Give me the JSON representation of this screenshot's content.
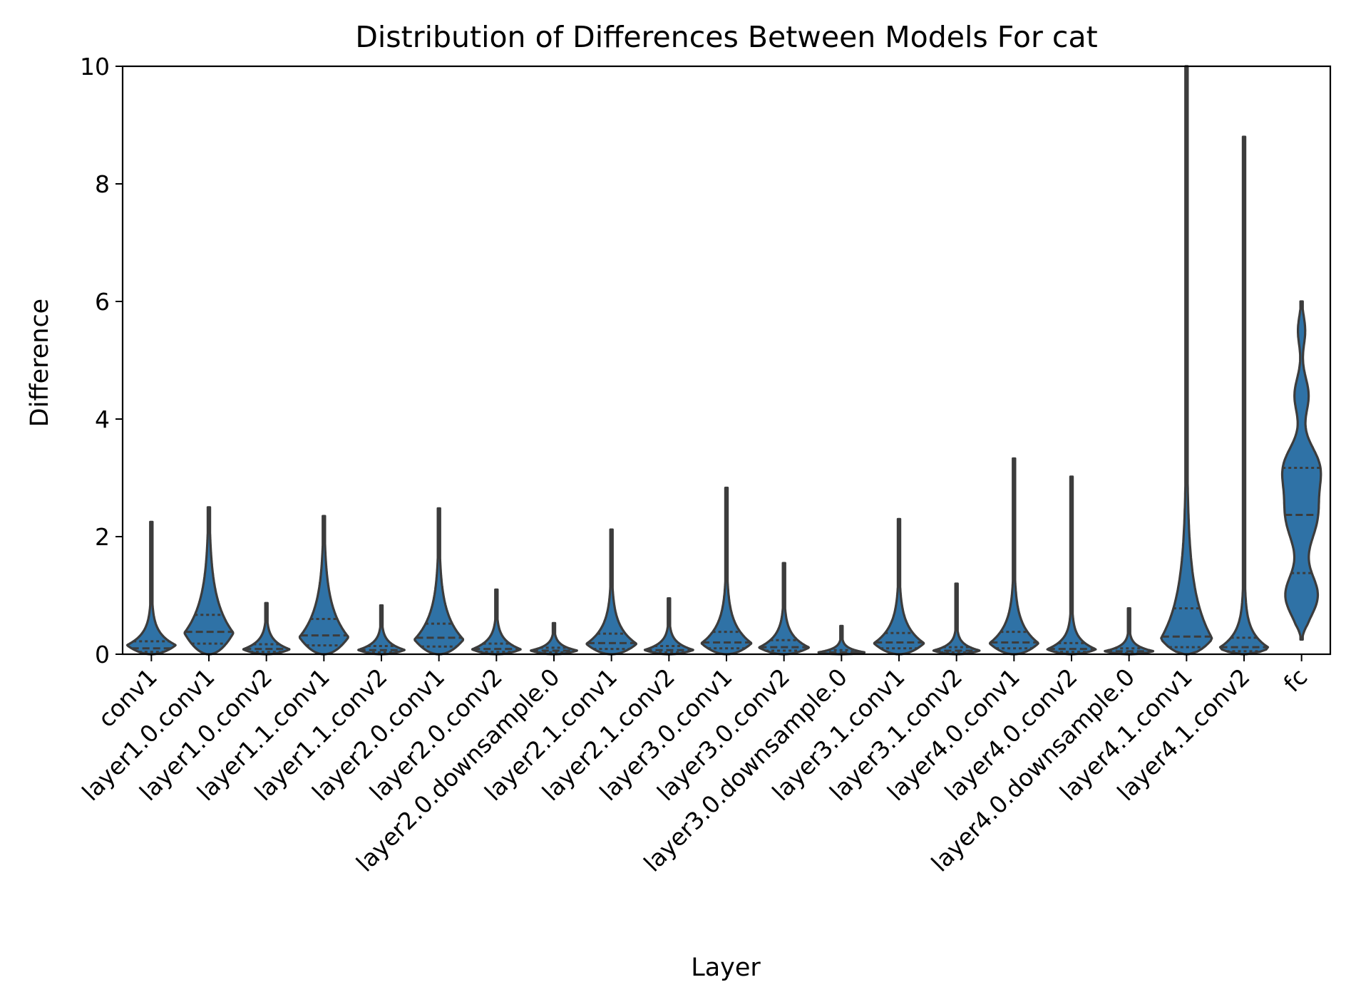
{
  "chart_data": {
    "type": "violin",
    "title": "Distribution of Differences Between Models For cat",
    "xlabel": "Layer",
    "ylabel": "Difference",
    "ylim": [
      0,
      10
    ],
    "yticks": [
      "0",
      "2",
      "4",
      "6",
      "8",
      "10"
    ],
    "grid": false,
    "legend": "none",
    "color": "#2f72a6",
    "edge_color": "#3c3c3c",
    "inner": "quartile",
    "categories": [
      "conv1",
      "layer1.0.conv1",
      "layer1.0.conv2",
      "layer1.1.conv1",
      "layer1.1.conv2",
      "layer2.0.conv1",
      "layer2.0.conv2",
      "layer2.0.downsample.0",
      "layer2.1.conv1",
      "layer2.1.conv2",
      "layer3.0.conv1",
      "layer3.0.conv2",
      "layer3.0.downsample.0",
      "layer3.1.conv1",
      "layer3.1.conv2",
      "layer4.0.conv1",
      "layer4.0.conv2",
      "layer4.0.downsample.0",
      "layer4.1.conv1",
      "layer4.1.conv2",
      "fc"
    ],
    "violins": [
      {
        "label": "conv1",
        "min": 0,
        "max": 2.25,
        "q1": 0.04,
        "median": 0.1,
        "q3": 0.22,
        "mode": 0.15,
        "max_halfwidth": 0.42
      },
      {
        "label": "layer1.0.conv1",
        "min": 0,
        "max": 2.5,
        "q1": 0.18,
        "median": 0.38,
        "q3": 0.67,
        "mode": 0.35,
        "max_halfwidth": 0.42
      },
      {
        "label": "layer1.0.conv2",
        "min": 0,
        "max": 0.87,
        "q1": 0.04,
        "median": 0.09,
        "q3": 0.17,
        "mode": 0.08,
        "max_halfwidth": 0.4
      },
      {
        "label": "layer1.1.conv1",
        "min": 0,
        "max": 2.35,
        "q1": 0.15,
        "median": 0.32,
        "q3": 0.6,
        "mode": 0.28,
        "max_halfwidth": 0.42
      },
      {
        "label": "layer1.1.conv2",
        "min": 0,
        "max": 0.83,
        "q1": 0.03,
        "median": 0.07,
        "q3": 0.14,
        "mode": 0.07,
        "max_halfwidth": 0.4
      },
      {
        "label": "layer2.0.conv1",
        "min": 0,
        "max": 2.48,
        "q1": 0.13,
        "median": 0.28,
        "q3": 0.52,
        "mode": 0.24,
        "max_halfwidth": 0.42
      },
      {
        "label": "layer2.0.conv2",
        "min": 0,
        "max": 1.1,
        "q1": 0.04,
        "median": 0.09,
        "q3": 0.18,
        "mode": 0.08,
        "max_halfwidth": 0.42
      },
      {
        "label": "layer2.0.downsample.0",
        "min": 0,
        "max": 0.53,
        "q1": 0.03,
        "median": 0.06,
        "q3": 0.11,
        "mode": 0.06,
        "max_halfwidth": 0.4
      },
      {
        "label": "layer2.1.conv1",
        "min": 0,
        "max": 2.12,
        "q1": 0.09,
        "median": 0.19,
        "q3": 0.35,
        "mode": 0.17,
        "max_halfwidth": 0.43
      },
      {
        "label": "layer2.1.conv2",
        "min": 0,
        "max": 0.95,
        "q1": 0.03,
        "median": 0.07,
        "q3": 0.14,
        "mode": 0.07,
        "max_halfwidth": 0.42
      },
      {
        "label": "layer3.0.conv1",
        "min": 0,
        "max": 2.83,
        "q1": 0.1,
        "median": 0.2,
        "q3": 0.38,
        "mode": 0.18,
        "max_halfwidth": 0.43
      },
      {
        "label": "layer3.0.conv2",
        "min": 0,
        "max": 1.55,
        "q1": 0.06,
        "median": 0.12,
        "q3": 0.24,
        "mode": 0.11,
        "max_halfwidth": 0.43
      },
      {
        "label": "layer3.0.downsample.0",
        "min": 0,
        "max": 0.48,
        "q1": 0.01,
        "median": 0.03,
        "q3": 0.07,
        "mode": 0.03,
        "max_halfwidth": 0.4
      },
      {
        "label": "layer3.1.conv1",
        "min": 0,
        "max": 2.3,
        "q1": 0.1,
        "median": 0.2,
        "q3": 0.36,
        "mode": 0.18,
        "max_halfwidth": 0.43
      },
      {
        "label": "layer3.1.conv2",
        "min": 0,
        "max": 1.2,
        "q1": 0.03,
        "median": 0.06,
        "q3": 0.12,
        "mode": 0.06,
        "max_halfwidth": 0.4
      },
      {
        "label": "layer4.0.conv1",
        "min": 0,
        "max": 3.33,
        "q1": 0.1,
        "median": 0.2,
        "q3": 0.38,
        "mode": 0.18,
        "max_halfwidth": 0.42
      },
      {
        "label": "layer4.0.conv2",
        "min": 0,
        "max": 3.02,
        "q1": 0.04,
        "median": 0.09,
        "q3": 0.19,
        "mode": 0.08,
        "max_halfwidth": 0.42
      },
      {
        "label": "layer4.0.downsample.0",
        "min": 0,
        "max": 0.78,
        "q1": 0.02,
        "median": 0.05,
        "q3": 0.1,
        "mode": 0.05,
        "max_halfwidth": 0.42
      },
      {
        "label": "layer4.1.conv1",
        "min": 0,
        "max": 10.0,
        "q1": 0.12,
        "median": 0.3,
        "q3": 0.78,
        "mode": 0.25,
        "max_halfwidth": 0.44
      },
      {
        "label": "layer4.1.conv2",
        "min": 0,
        "max": 8.8,
        "q1": 0.05,
        "median": 0.12,
        "q3": 0.28,
        "mode": 0.1,
        "max_halfwidth": 0.43
      },
      {
        "label": "fc",
        "min": 0.25,
        "max": 6.0,
        "q1": 1.38,
        "median": 2.37,
        "q3": 3.17,
        "mode": 2.37,
        "max_halfwidth": 0.35
      }
    ]
  }
}
